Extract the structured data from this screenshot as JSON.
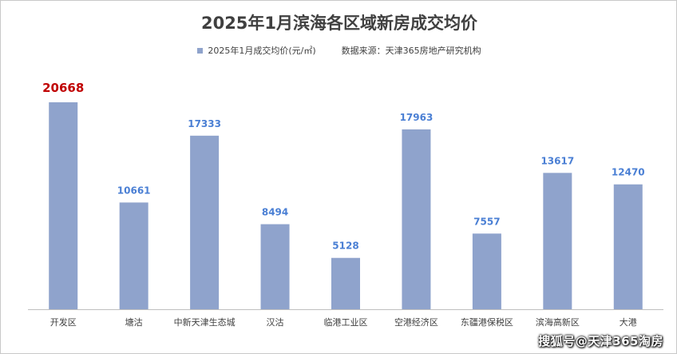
{
  "watermark": "搜狐号@天津365淘房",
  "chart_data": {
    "type": "bar",
    "title": "2025年1月滨海各区域新房成交均价",
    "legend": {
      "series_label": "2025年1月成交均价(元/㎡)",
      "note": "数据来源：天津365房地产研究机构",
      "placement": "top"
    },
    "categories": [
      "开发区",
      "塘沽",
      "中新天津生态城",
      "汉沽",
      "临港工业区",
      "空港经济区",
      "东疆港保税区",
      "滨海高新区",
      "大港"
    ],
    "series": [
      {
        "name": "2025年1月成交均价(元/㎡)",
        "values": [
          20668,
          10661,
          17333,
          8494,
          5128,
          17963,
          7557,
          13617,
          12470
        ]
      }
    ],
    "ylim": [
      0,
      20668
    ],
    "grid": false,
    "colors": {
      "bar": "#8fa3cc",
      "label": "#4a7fd4",
      "max_label": "#c00000",
      "axis": "#bfbfbf",
      "tick_text": "#404040"
    },
    "highlight_max": true
  }
}
